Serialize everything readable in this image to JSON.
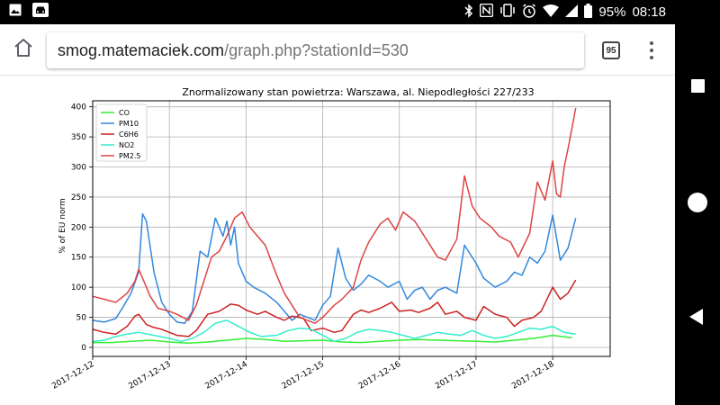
{
  "status_bar": {
    "battery_percent": "95%",
    "time": "08:18",
    "icons": [
      "image-icon",
      "car-icon",
      "bluetooth-icon",
      "nfc-icon",
      "vibrate-icon",
      "alarm-icon",
      "wifi-icon",
      "signal-icon",
      "battery-icon"
    ]
  },
  "browser": {
    "url_host": "smog.matemaciek.com",
    "url_path": "/graph.php?stationId=530",
    "tab_count": "95",
    "icons": [
      "home-icon",
      "tabs-icon",
      "more-vert-icon"
    ]
  },
  "nav_bar": {
    "icons": [
      "recents-icon",
      "home-circle-icon",
      "back-icon"
    ]
  },
  "chart_data": {
    "type": "line",
    "title": "Znormalizowany stan powietrza: Warszawa, al. Niepodległości 227/233",
    "xlabel": "",
    "ylabel": "% of EU norm",
    "x_tick_labels": [
      "2017-12-12",
      "2017-12-13",
      "2017-12-14",
      "2017-12-15",
      "2017-12-16",
      "2017-12-17",
      "2017-12-18"
    ],
    "xlim": [
      0,
      6.75
    ],
    "ylim": [
      -15,
      410
    ],
    "y_ticks": [
      0,
      50,
      100,
      150,
      200,
      250,
      300,
      350,
      400
    ],
    "grid": true,
    "legend_position": "top-left",
    "series": [
      {
        "name": "CO",
        "color": "#33ee33",
        "x": [
          0,
          0.25,
          0.5,
          0.75,
          1.0,
          1.25,
          1.5,
          1.75,
          2.0,
          2.25,
          2.5,
          2.75,
          3.0,
          3.25,
          3.5,
          3.75,
          4.0,
          4.25,
          4.5,
          4.75,
          5.0,
          5.25,
          5.5,
          5.75,
          6.0,
          6.25
        ],
        "y": [
          8,
          8,
          10,
          12,
          9,
          7,
          9,
          12,
          15,
          13,
          10,
          11,
          12,
          9,
          8,
          10,
          12,
          13,
          12,
          11,
          10,
          9,
          12,
          15,
          20,
          16
        ]
      },
      {
        "name": "PM10",
        "color": "#3388dd",
        "x": [
          0,
          0.15,
          0.3,
          0.4,
          0.5,
          0.6,
          0.65,
          0.7,
          0.8,
          0.9,
          1.0,
          1.1,
          1.2,
          1.3,
          1.4,
          1.5,
          1.6,
          1.7,
          1.75,
          1.8,
          1.85,
          1.9,
          2.0,
          2.1,
          2.25,
          2.4,
          2.5,
          2.6,
          2.7,
          2.8,
          2.9,
          3.0,
          3.1,
          3.2,
          3.3,
          3.4,
          3.5,
          3.6,
          3.75,
          3.85,
          4.0,
          4.1,
          4.2,
          4.3,
          4.4,
          4.5,
          4.6,
          4.75,
          4.85,
          5.0,
          5.1,
          5.25,
          5.4,
          5.5,
          5.6,
          5.7,
          5.8,
          5.9,
          6.0,
          6.1,
          6.2,
          6.3
        ],
        "y": [
          45,
          42,
          48,
          68,
          90,
          125,
          222,
          210,
          125,
          75,
          55,
          42,
          40,
          60,
          160,
          150,
          215,
          185,
          210,
          170,
          200,
          140,
          110,
          100,
          90,
          75,
          60,
          45,
          55,
          50,
          45,
          70,
          85,
          165,
          115,
          95,
          105,
          120,
          110,
          100,
          110,
          80,
          95,
          100,
          80,
          95,
          100,
          90,
          170,
          140,
          115,
          100,
          110,
          125,
          120,
          150,
          140,
          160,
          220,
          145,
          165,
          215
        ]
      },
      {
        "name": "C6H6",
        "color": "#cc2222",
        "x": [
          0,
          0.15,
          0.3,
          0.45,
          0.55,
          0.6,
          0.7,
          0.8,
          0.9,
          1.0,
          1.1,
          1.25,
          1.35,
          1.5,
          1.65,
          1.8,
          1.9,
          2.0,
          2.15,
          2.25,
          2.4,
          2.5,
          2.6,
          2.75,
          2.85,
          3.0,
          3.15,
          3.25,
          3.4,
          3.5,
          3.6,
          3.75,
          3.9,
          4.0,
          4.15,
          4.25,
          4.4,
          4.5,
          4.6,
          4.75,
          4.85,
          5.0,
          5.1,
          5.25,
          5.4,
          5.5,
          5.6,
          5.75,
          5.85,
          6.0,
          6.1,
          6.2,
          6.3
        ],
        "y": [
          30,
          25,
          22,
          35,
          52,
          55,
          38,
          33,
          30,
          25,
          20,
          18,
          28,
          55,
          60,
          72,
          70,
          62,
          55,
          60,
          50,
          45,
          52,
          48,
          28,
          32,
          25,
          28,
          55,
          62,
          58,
          65,
          75,
          60,
          62,
          58,
          65,
          75,
          55,
          60,
          50,
          45,
          68,
          55,
          50,
          35,
          45,
          50,
          60,
          100,
          80,
          90,
          112
        ]
      },
      {
        "name": "NO2",
        "color": "#33eecc",
        "x": [
          0,
          0.15,
          0.3,
          0.45,
          0.6,
          0.8,
          1.0,
          1.15,
          1.3,
          1.45,
          1.6,
          1.75,
          1.9,
          2.05,
          2.2,
          2.4,
          2.55,
          2.7,
          2.85,
          3.0,
          3.15,
          3.3,
          3.45,
          3.6,
          3.75,
          3.9,
          4.05,
          4.2,
          4.35,
          4.5,
          4.65,
          4.8,
          4.95,
          5.1,
          5.25,
          5.4,
          5.55,
          5.7,
          5.85,
          6.0,
          6.15,
          6.3
        ],
        "y": [
          10,
          12,
          18,
          22,
          25,
          20,
          15,
          10,
          15,
          25,
          40,
          45,
          35,
          25,
          18,
          20,
          28,
          32,
          30,
          20,
          10,
          15,
          25,
          30,
          28,
          25,
          20,
          15,
          20,
          25,
          22,
          20,
          28,
          20,
          15,
          18,
          25,
          32,
          30,
          35,
          25,
          22
        ]
      },
      {
        "name": "PM2.5",
        "color": "#dd4444",
        "x": [
          0,
          0.15,
          0.3,
          0.45,
          0.55,
          0.6,
          0.65,
          0.75,
          0.85,
          1.0,
          1.1,
          1.25,
          1.35,
          1.45,
          1.55,
          1.65,
          1.75,
          1.85,
          1.95,
          2.05,
          2.15,
          2.25,
          2.4,
          2.5,
          2.6,
          2.7,
          2.8,
          2.9,
          3.0,
          3.15,
          3.25,
          3.4,
          3.5,
          3.6,
          3.75,
          3.85,
          3.95,
          4.05,
          4.2,
          4.35,
          4.5,
          4.6,
          4.75,
          4.85,
          4.95,
          5.05,
          5.2,
          5.3,
          5.45,
          5.55,
          5.7,
          5.8,
          5.9,
          6.0,
          6.05,
          6.1,
          6.15,
          6.2,
          6.3
        ],
        "y": [
          85,
          80,
          75,
          90,
          110,
          130,
          115,
          85,
          65,
          60,
          55,
          45,
          70,
          110,
          150,
          160,
          185,
          215,
          225,
          200,
          185,
          170,
          120,
          90,
          70,
          50,
          45,
          40,
          50,
          70,
          80,
          100,
          145,
          175,
          205,
          215,
          195,
          225,
          210,
          180,
          150,
          145,
          180,
          285,
          235,
          215,
          200,
          185,
          175,
          150,
          190,
          275,
          245,
          310,
          255,
          250,
          300,
          330,
          398
        ]
      }
    ]
  }
}
